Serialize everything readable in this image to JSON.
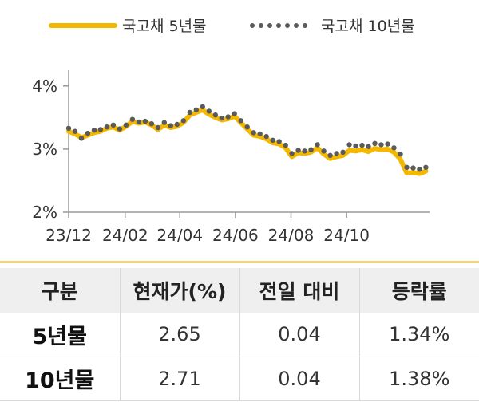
{
  "chart_data": {
    "type": "line",
    "legend": [
      {
        "name": "국고채 5년물",
        "style": "solid",
        "color": "#f5b800"
      },
      {
        "name": "국고채 10년물",
        "style": "dotted",
        "color": "#5a5a5a"
      }
    ],
    "legend_position": "top",
    "ylim": [
      2,
      4.25
    ],
    "y_ticks": [
      "2%",
      "3%",
      "4%"
    ],
    "y_tick_values": [
      2,
      3,
      4
    ],
    "x_ticks": [
      "23/12",
      "24/02",
      "24/04",
      "24/06",
      "24/08",
      "24/10"
    ],
    "x_tick_dates": [
      "2023-12-01",
      "2024-02-01",
      "2024-04-01",
      "2024-06-01",
      "2024-08-01",
      "2024-10-01"
    ],
    "x_range": [
      "2023-12-01",
      "2024-12-31"
    ],
    "series": [
      {
        "name": "국고채 5년물",
        "points": [
          [
            "2023-12-01",
            3.28
          ],
          [
            "2023-12-08",
            3.24
          ],
          [
            "2023-12-15",
            3.18
          ],
          [
            "2023-12-22",
            3.22
          ],
          [
            "2023-12-29",
            3.26
          ],
          [
            "2024-01-05",
            3.28
          ],
          [
            "2024-01-12",
            3.33
          ],
          [
            "2024-01-19",
            3.35
          ],
          [
            "2024-01-26",
            3.3
          ],
          [
            "2024-02-02",
            3.36
          ],
          [
            "2024-02-09",
            3.44
          ],
          [
            "2024-02-16",
            3.41
          ],
          [
            "2024-02-23",
            3.43
          ],
          [
            "2024-03-01",
            3.38
          ],
          [
            "2024-03-08",
            3.31
          ],
          [
            "2024-03-15",
            3.38
          ],
          [
            "2024-03-22",
            3.34
          ],
          [
            "2024-03-29",
            3.36
          ],
          [
            "2024-04-05",
            3.42
          ],
          [
            "2024-04-12",
            3.54
          ],
          [
            "2024-04-19",
            3.58
          ],
          [
            "2024-04-26",
            3.62
          ],
          [
            "2024-05-03",
            3.55
          ],
          [
            "2024-05-10",
            3.5
          ],
          [
            "2024-05-17",
            3.46
          ],
          [
            "2024-05-24",
            3.48
          ],
          [
            "2024-05-31",
            3.52
          ],
          [
            "2024-06-07",
            3.42
          ],
          [
            "2024-06-14",
            3.32
          ],
          [
            "2024-06-21",
            3.22
          ],
          [
            "2024-06-28",
            3.2
          ],
          [
            "2024-07-05",
            3.16
          ],
          [
            "2024-07-12",
            3.1
          ],
          [
            "2024-07-19",
            3.08
          ],
          [
            "2024-07-26",
            3.02
          ],
          [
            "2024-08-02",
            2.88
          ],
          [
            "2024-08-09",
            2.94
          ],
          [
            "2024-08-16",
            2.93
          ],
          [
            "2024-08-23",
            2.95
          ],
          [
            "2024-08-30",
            3.02
          ],
          [
            "2024-09-06",
            2.92
          ],
          [
            "2024-09-13",
            2.85
          ],
          [
            "2024-09-20",
            2.88
          ],
          [
            "2024-09-27",
            2.9
          ],
          [
            "2024-10-04",
            2.98
          ],
          [
            "2024-10-11",
            2.97
          ],
          [
            "2024-10-18",
            2.99
          ],
          [
            "2024-10-25",
            2.96
          ],
          [
            "2024-11-01",
            3.01
          ],
          [
            "2024-11-08",
            2.99
          ],
          [
            "2024-11-15",
            3.0
          ],
          [
            "2024-11-22",
            2.95
          ],
          [
            "2024-11-29",
            2.84
          ],
          [
            "2024-12-06",
            2.62
          ],
          [
            "2024-12-13",
            2.63
          ],
          [
            "2024-12-20",
            2.61
          ],
          [
            "2024-12-27",
            2.65
          ]
        ]
      },
      {
        "name": "국고채 10년물",
        "points": [
          [
            "2023-12-01",
            3.33
          ],
          [
            "2023-12-08",
            3.28
          ],
          [
            "2023-12-15",
            3.17
          ],
          [
            "2023-12-22",
            3.25
          ],
          [
            "2023-12-29",
            3.3
          ],
          [
            "2024-01-05",
            3.31
          ],
          [
            "2024-01-12",
            3.35
          ],
          [
            "2024-01-19",
            3.38
          ],
          [
            "2024-01-26",
            3.32
          ],
          [
            "2024-02-02",
            3.38
          ],
          [
            "2024-02-09",
            3.47
          ],
          [
            "2024-02-16",
            3.43
          ],
          [
            "2024-02-23",
            3.44
          ],
          [
            "2024-03-01",
            3.4
          ],
          [
            "2024-03-08",
            3.34
          ],
          [
            "2024-03-15",
            3.42
          ],
          [
            "2024-03-22",
            3.37
          ],
          [
            "2024-03-29",
            3.39
          ],
          [
            "2024-04-05",
            3.45
          ],
          [
            "2024-04-12",
            3.58
          ],
          [
            "2024-04-19",
            3.62
          ],
          [
            "2024-04-26",
            3.67
          ],
          [
            "2024-05-03",
            3.6
          ],
          [
            "2024-05-10",
            3.54
          ],
          [
            "2024-05-17",
            3.49
          ],
          [
            "2024-05-24",
            3.51
          ],
          [
            "2024-05-31",
            3.56
          ],
          [
            "2024-06-07",
            3.45
          ],
          [
            "2024-06-14",
            3.35
          ],
          [
            "2024-06-21",
            3.26
          ],
          [
            "2024-06-28",
            3.24
          ],
          [
            "2024-07-05",
            3.2
          ],
          [
            "2024-07-12",
            3.14
          ],
          [
            "2024-07-19",
            3.12
          ],
          [
            "2024-07-26",
            3.06
          ],
          [
            "2024-08-02",
            2.93
          ],
          [
            "2024-08-09",
            2.98
          ],
          [
            "2024-08-16",
            2.97
          ],
          [
            "2024-08-23",
            2.99
          ],
          [
            "2024-08-30",
            3.07
          ],
          [
            "2024-09-06",
            2.97
          ],
          [
            "2024-09-13",
            2.9
          ],
          [
            "2024-09-20",
            2.93
          ],
          [
            "2024-09-27",
            2.95
          ],
          [
            "2024-10-04",
            3.07
          ],
          [
            "2024-10-11",
            3.05
          ],
          [
            "2024-10-18",
            3.06
          ],
          [
            "2024-10-25",
            3.04
          ],
          [
            "2024-11-01",
            3.09
          ],
          [
            "2024-11-08",
            3.07
          ],
          [
            "2024-11-15",
            3.08
          ],
          [
            "2024-11-22",
            3.02
          ],
          [
            "2024-11-29",
            2.92
          ],
          [
            "2024-12-06",
            2.71
          ],
          [
            "2024-12-13",
            2.7
          ],
          [
            "2024-12-20",
            2.68
          ],
          [
            "2024-12-27",
            2.71
          ]
        ]
      }
    ]
  },
  "table": {
    "headers": [
      "구분",
      "현재가(%)",
      "전일 대비",
      "등락률"
    ],
    "rows": [
      [
        "5년물",
        "2.65",
        "0.04",
        "1.34%"
      ],
      [
        "10년물",
        "2.71",
        "0.04",
        "1.38%"
      ]
    ]
  }
}
